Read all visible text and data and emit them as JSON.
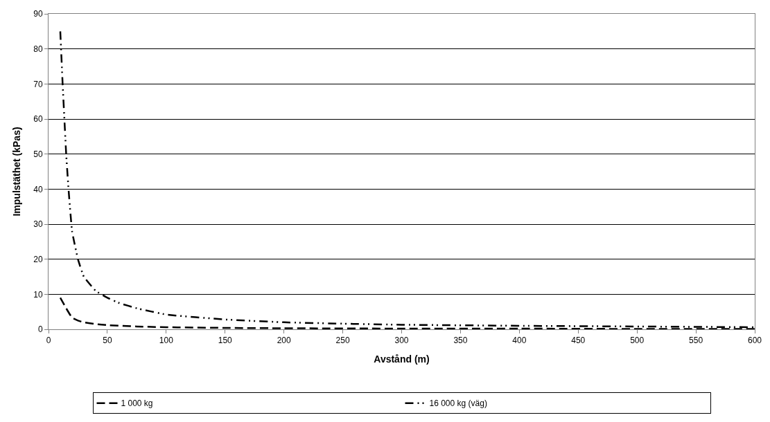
{
  "chart_data": {
    "type": "line",
    "xlabel": "Avstånd (m)",
    "ylabel": "Impulstäthet (kPas)",
    "xlim": [
      0,
      600
    ],
    "xticks": [
      0,
      50,
      100,
      150,
      200,
      250,
      300,
      350,
      400,
      450,
      500,
      550,
      600
    ],
    "ylim": [
      0,
      90
    ],
    "yticks": [
      0,
      10,
      20,
      30,
      40,
      50,
      60,
      70,
      80,
      90
    ],
    "grid": "y",
    "legend": "bottom",
    "marker": "none",
    "series": [
      {
        "name": "1 000 kg",
        "color": "#000000",
        "line_style": "dashed",
        "x": [
          10,
          15,
          20,
          25,
          30,
          40,
          50,
          75,
          100,
          150,
          200,
          300,
          400,
          500,
          600
        ],
        "values": [
          9,
          6,
          3.3,
          2.5,
          2,
          1.5,
          1.2,
          0.8,
          0.6,
          0.4,
          0.3,
          0.2,
          0.2,
          0.1,
          0.1
        ]
      },
      {
        "name": "16 000 kg (väg)",
        "color": "#000000",
        "line_style": "dashdotdot",
        "x": [
          10,
          12,
          15,
          17,
          20,
          25,
          30,
          40,
          50,
          60,
          75,
          100,
          150,
          200,
          250,
          300,
          400,
          500,
          600
        ],
        "values": [
          85,
          70,
          50,
          40,
          28,
          20,
          15,
          11,
          9,
          7.5,
          6,
          4.2,
          2.8,
          2,
          1.6,
          1.3,
          1,
          0.8,
          0.6
        ]
      }
    ]
  }
}
